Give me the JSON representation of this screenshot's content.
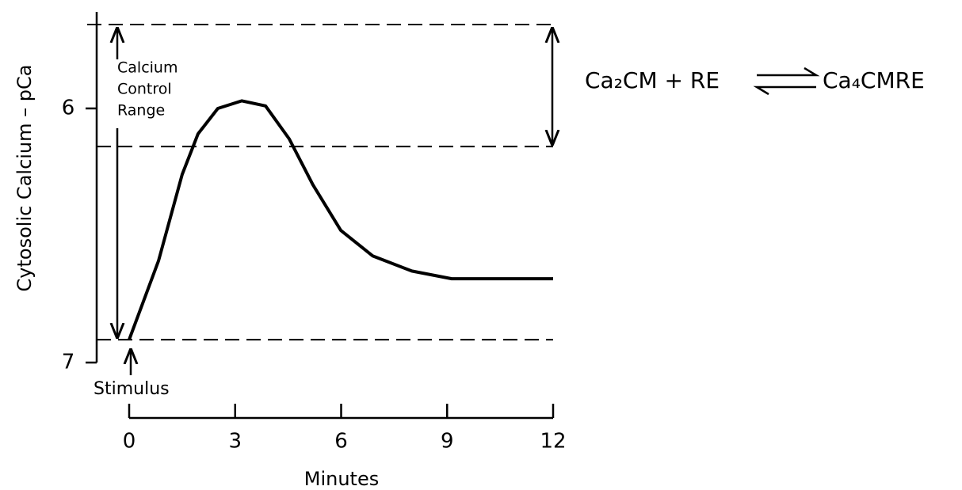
{
  "chart_data": {
    "type": "line",
    "y_label": "Cytosolic Calcium – pCa",
    "x_label": "Minutes",
    "annotation_lines": [
      "Calcium",
      "Control",
      "Range"
    ],
    "stimulus_label": "Stimulus",
    "equation_left": "Ca₂CM + RE",
    "equation_right": "Ca₄CMRE",
    "x": [
      0,
      0.83,
      1.5,
      1.95,
      2.51,
      3.19,
      3.86,
      4.53,
      5.2,
      5.99,
      6.89,
      8.0,
      9.13,
      10.25,
      12
    ],
    "values": [
      6.91,
      6.6,
      6.26,
      6.1,
      6.0,
      5.97,
      5.99,
      6.12,
      6.3,
      6.48,
      6.58,
      6.64,
      6.67,
      6.67,
      6.67
    ],
    "color": "#000000",
    "hlines": [
      5.67,
      6.15,
      6.91
    ],
    "xlim": [
      0,
      12
    ],
    "xticks": [
      0,
      3,
      6,
      9,
      12
    ],
    "ylim": [
      7,
      5.62
    ],
    "yticks": [
      6,
      7
    ]
  }
}
